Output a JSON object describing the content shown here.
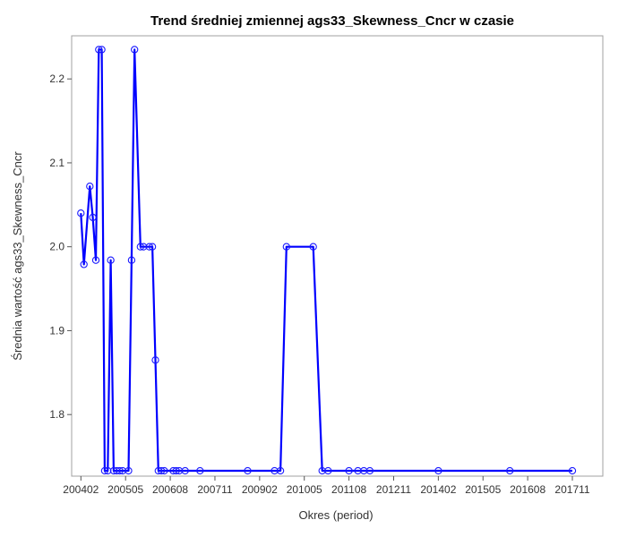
{
  "chart_data": {
    "type": "line",
    "title": "Trend średniej zmiennej ags33_Skewness_Cncr w czasie",
    "xlabel": "Okres (period)",
    "ylabel": "Średnia wartość ags33_Skewness_Cncr",
    "xlim": [
      "2004-01",
      "2017-11"
    ],
    "ylim": [
      1.733,
      2.245
    ],
    "x_ticks": [
      "200402",
      "200505",
      "200608",
      "200711",
      "200902",
      "201005",
      "201108",
      "201211",
      "201402",
      "201505",
      "201608",
      "201711"
    ],
    "y_ticks": [
      1.8,
      1.9,
      2.0,
      2.1,
      2.2
    ],
    "grid": false,
    "legend": "none",
    "colors": {
      "line": "#0000ff",
      "marker": "#1a1aff"
    },
    "series": [
      {
        "x": [
          "2004-02",
          "2004-03",
          "2004-05",
          "2004-06",
          "2004-07",
          "2004-08",
          "2004-09",
          "2004-10",
          "2004-11",
          "2004-12",
          "2005-01",
          "2005-02",
          "2005-03",
          "2005-04",
          "2005-06",
          "2005-07",
          "2005-08",
          "2005-10",
          "2005-11",
          "2006-01",
          "2006-02",
          "2006-03",
          "2006-04",
          "2006-05",
          "2006-06",
          "2006-09",
          "2006-10",
          "2006-11",
          "2007-01",
          "2007-06",
          "2008-10",
          "2009-07",
          "2009-09",
          "2009-11",
          "2010-08",
          "2010-11",
          "2011-01",
          "2011-08",
          "2011-11",
          "2012-01",
          "2012-03",
          "2014-02",
          "2016-02",
          "2017-11"
        ],
        "y": [
          2.04,
          1.979,
          2.072,
          2.035,
          1.984,
          2.235,
          2.235,
          1.733,
          1.733,
          1.984,
          1.733,
          1.733,
          1.733,
          1.733,
          1.733,
          1.984,
          2.235,
          2.0,
          2.0,
          2.0,
          2.0,
          1.865,
          1.733,
          1.733,
          1.733,
          1.733,
          1.733,
          1.733,
          1.733,
          1.733,
          1.733,
          1.733,
          1.733,
          2.0,
          2.0,
          1.733,
          1.733,
          1.733,
          1.733,
          1.733,
          1.733,
          1.733,
          1.733,
          1.733
        ]
      }
    ]
  }
}
